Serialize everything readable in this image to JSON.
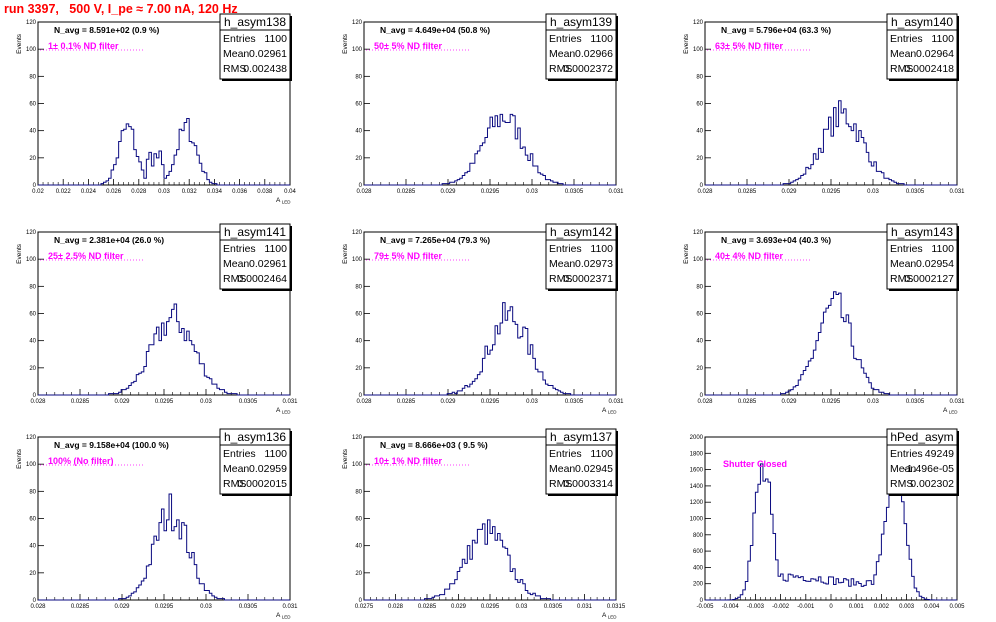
{
  "page": {
    "title": "run 3397,   500 V, I_pe ≈ 7.00 nA, 120 Hz"
  },
  "chart_data": [
    {
      "type": "histogram",
      "name": "h_asym138",
      "stats": {
        "entries": "1100",
        "mean": "0.02961",
        "rms": "0.002438"
      },
      "n_avg": "N_avg = 8.591e+02 (0.9 %)",
      "note": "1± 0.1% ND filter",
      "xlabel": "A_LED",
      "ylabel": "Events",
      "xlim": [
        0.02,
        0.04
      ],
      "ylim": [
        0,
        120
      ],
      "xticks": [
        0.02,
        0.022,
        0.024,
        0.026,
        0.028,
        0.03,
        0.032,
        0.034,
        0.036,
        0.038,
        0.04
      ],
      "xtick_labels": [
        "0.02",
        "0.022",
        "0.024",
        "0.026",
        "0.028",
        "0.03",
        "0.032",
        "0.034",
        "0.036",
        "0.038",
        "0.04"
      ],
      "yticks": [
        0,
        20,
        40,
        60,
        80,
        100,
        120
      ],
      "shape": "bimodal",
      "modes": [
        {
          "mu": 0.0271,
          "sigma": 0.0007,
          "amp": 42
        },
        {
          "mu": 0.0318,
          "sigma": 0.0008,
          "amp": 42
        }
      ],
      "valley": [
        0.0285,
        0.03,
        22
      ]
    },
    {
      "type": "histogram",
      "name": "h_asym139",
      "stats": {
        "entries": "1100",
        "mean": "0.02966",
        "rms": "0.0002372"
      },
      "n_avg": "N_avg = 4.649e+04 (50.8 %)",
      "note": "50± 5% ND filter",
      "xlabel": "",
      "ylabel": "Events",
      "xlim": [
        0.028,
        0.031
      ],
      "ylim": [
        0,
        120
      ],
      "xticks": [
        0.028,
        0.0285,
        0.029,
        0.0295,
        0.03,
        0.0305,
        0.031
      ],
      "xtick_labels": [
        "0.028",
        "0.0285",
        "0.029",
        "0.0295",
        "0.03",
        "0.0305",
        "0.031"
      ],
      "yticks": [
        0,
        20,
        40,
        60,
        80,
        100,
        120
      ],
      "shape": "gauss",
      "modes": [
        {
          "mu": 0.02966,
          "sigma": 0.00024,
          "amp": 50
        }
      ]
    },
    {
      "type": "histogram",
      "name": "h_asym140",
      "stats": {
        "entries": "1100",
        "mean": "0.02964",
        "rms": "0.0002418"
      },
      "n_avg": "N_avg = 5.796e+04 (63.3 %)",
      "note": "63± 5% ND filter",
      "xlabel": "",
      "ylabel": "Events",
      "xlim": [
        0.028,
        0.031
      ],
      "ylim": [
        0,
        120
      ],
      "xticks": [
        0.028,
        0.0285,
        0.029,
        0.0295,
        0.03,
        0.0305,
        0.031
      ],
      "xtick_labels": [
        "0.028",
        "0.0285",
        "0.029",
        "0.0295",
        "0.03",
        "0.0305",
        "0.031"
      ],
      "yticks": [
        0,
        20,
        40,
        60,
        80,
        100,
        120
      ],
      "shape": "gauss",
      "modes": [
        {
          "mu": 0.02964,
          "sigma": 0.00024,
          "amp": 52
        }
      ]
    },
    {
      "type": "histogram",
      "name": "h_asym141",
      "stats": {
        "entries": "1100",
        "mean": "0.02961",
        "rms": "0.0002464"
      },
      "n_avg": "N_avg = 2.381e+04 (26.0 %)",
      "note": "25± 2.5% ND filter",
      "xlabel": "A_LED",
      "ylabel": "Events",
      "xlim": [
        0.028,
        0.031
      ],
      "ylim": [
        0,
        120
      ],
      "xticks": [
        0.028,
        0.0285,
        0.029,
        0.0295,
        0.03,
        0.0305,
        0.031
      ],
      "xtick_labels": [
        "0.028",
        "0.0285",
        "0.029",
        "0.0295",
        "0.03",
        "0.0305",
        "0.031"
      ],
      "yticks": [
        0,
        20,
        40,
        60,
        80,
        100,
        120
      ],
      "shape": "gauss",
      "modes": [
        {
          "mu": 0.02961,
          "sigma": 0.00025,
          "amp": 56
        }
      ]
    },
    {
      "type": "histogram",
      "name": "h_asym142",
      "stats": {
        "entries": "1100",
        "mean": "0.02973",
        "rms": "0.0002371"
      },
      "n_avg": "N_avg = 7.265e+04 (79.3 %)",
      "note": "79± 5% ND filter",
      "xlabel": "A_LED",
      "ylabel": "Events",
      "xlim": [
        0.028,
        0.031
      ],
      "ylim": [
        0,
        120
      ],
      "xticks": [
        0.028,
        0.0285,
        0.029,
        0.0295,
        0.03,
        0.0305,
        0.031
      ],
      "xtick_labels": [
        "0.028",
        "0.0285",
        "0.029",
        "0.0295",
        "0.03",
        "0.0305",
        "0.031"
      ],
      "yticks": [
        0,
        20,
        40,
        60,
        80,
        100,
        120
      ],
      "shape": "gauss",
      "modes": [
        {
          "mu": 0.02973,
          "sigma": 0.00024,
          "amp": 58
        }
      ]
    },
    {
      "type": "histogram",
      "name": "h_asym143",
      "stats": {
        "entries": "1100",
        "mean": "0.02954",
        "rms": "0.0002127"
      },
      "n_avg": "N_avg = 3.693e+04 (40.3 %)",
      "note": "40± 4% ND filter",
      "xlabel": "A_LED",
      "ylabel": "Events",
      "xlim": [
        0.028,
        0.031
      ],
      "ylim": [
        0,
        120
      ],
      "xticks": [
        0.028,
        0.0285,
        0.029,
        0.0295,
        0.03,
        0.0305,
        0.031
      ],
      "xtick_labels": [
        "0.028",
        "0.0285",
        "0.029",
        "0.0295",
        "0.03",
        "0.0305",
        "0.031"
      ],
      "yticks": [
        0,
        20,
        40,
        60,
        80,
        100,
        120
      ],
      "shape": "gauss",
      "modes": [
        {
          "mu": 0.02954,
          "sigma": 0.00021,
          "amp": 65
        }
      ]
    },
    {
      "type": "histogram",
      "name": "h_asym136",
      "stats": {
        "entries": "1100",
        "mean": "0.02959",
        "rms": "0.0002015"
      },
      "n_avg": "N_avg = 9.158e+04 (100.0 %)",
      "note": "100% (No filter)",
      "xlabel": "A_LED",
      "ylabel": "Events",
      "xlim": [
        0.028,
        0.031
      ],
      "ylim": [
        0,
        120
      ],
      "xticks": [
        0.028,
        0.0285,
        0.029,
        0.0295,
        0.03,
        0.0305,
        0.031
      ],
      "xtick_labels": [
        "0.028",
        "0.0285",
        "0.029",
        "0.0295",
        "0.03",
        "0.0305",
        "0.031"
      ],
      "yticks": [
        0,
        20,
        40,
        60,
        80,
        100,
        120
      ],
      "shape": "gauss",
      "modes": [
        {
          "mu": 0.02959,
          "sigma": 0.0002,
          "amp": 66
        }
      ]
    },
    {
      "type": "histogram",
      "name": "h_asym137",
      "stats": {
        "entries": "1100",
        "mean": "0.02945",
        "rms": "0.0003314"
      },
      "n_avg": "N_avg = 8.666e+03 ( 9.5 %)",
      "note": "10± 1% ND filter",
      "xlabel": "A_LED",
      "ylabel": "Events",
      "xlim": [
        0.0275,
        0.0315
      ],
      "ylim": [
        0,
        120
      ],
      "xticks": [
        0.0275,
        0.028,
        0.0285,
        0.029,
        0.0295,
        0.03,
        0.0305,
        0.031,
        0.0315
      ],
      "xtick_labels": [
        "0.0275",
        "0.028",
        "0.0285",
        "0.029",
        "0.0295",
        "0.03",
        "0.0305",
        "0.031",
        "0.0315"
      ],
      "yticks": [
        0,
        20,
        40,
        60,
        80,
        100,
        120
      ],
      "shape": "gauss",
      "modes": [
        {
          "mu": 0.02945,
          "sigma": 0.00033,
          "amp": 50
        }
      ]
    },
    {
      "type": "histogram",
      "name": "hPed_asym",
      "stats": {
        "entries": "49249",
        "mean": "-1.496e-05",
        "rms": "0.002302"
      },
      "n_avg": "",
      "note": "Shutter Closed",
      "xlabel": "",
      "ylabel": "",
      "xlim": [
        -0.005,
        0.005
      ],
      "ylim": [
        0,
        2000
      ],
      "xticks": [
        -0.005,
        -0.004,
        -0.003,
        -0.002,
        -0.001,
        0,
        0.001,
        0.002,
        0.003,
        0.004,
        0.005
      ],
      "xtick_labels": [
        "-0.005",
        "-0.004",
        "-0.003",
        "-0.002",
        "-0.001",
        "0",
        "0.001",
        "0.002",
        "0.003",
        "0.004",
        "0.005"
      ],
      "yticks": [
        0,
        200,
        400,
        600,
        800,
        1000,
        1200,
        1400,
        1600,
        1800,
        2000
      ],
      "shape": "pedestal",
      "modes": [
        {
          "mu": -0.0027,
          "sigma": 0.00035,
          "amp": 1550
        },
        {
          "mu": 0.0025,
          "sigma": 0.0004,
          "amp": 1550
        }
      ],
      "floor": 250
    }
  ]
}
